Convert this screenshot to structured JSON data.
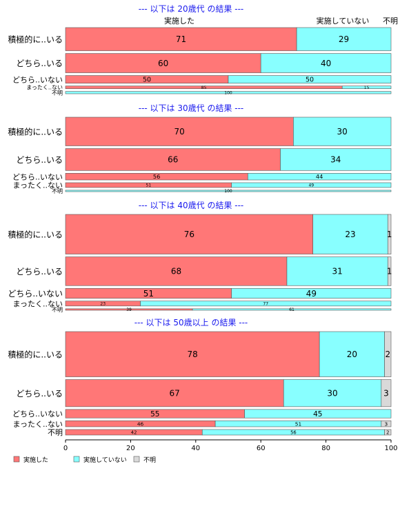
{
  "chart_data": {
    "type": "bar",
    "orientation": "horizontal",
    "stacked": true,
    "xlim": [
      0,
      100
    ],
    "x_ticks": [
      0,
      20,
      40,
      60,
      80,
      100
    ],
    "column_headers": [
      "実施した",
      "実施していない",
      "不明"
    ],
    "legend": {
      "position": "bottom-left",
      "entries": [
        "実施した",
        "実施していない",
        "不明"
      ]
    },
    "colors": {
      "実施した": "#ff7777",
      "実施していない": "#88ffff",
      "不明": "#d9d9d9"
    },
    "panels": [
      {
        "title": "--- 以下は 20歳代 の結果 ---",
        "rows": [
          {
            "label": "積極的に..いる",
            "values": [
              71,
              29,
              0
            ],
            "weight": 3
          },
          {
            "label": "どちら..いる",
            "values": [
              60,
              40,
              0
            ],
            "weight": 2.5
          },
          {
            "label": "どちら..いない",
            "values": [
              50,
              50,
              0
            ],
            "weight": 1
          },
          {
            "label": "まったく..ない",
            "values": [
              85,
              15,
              0
            ],
            "weight": 0.35
          },
          {
            "label": "不明",
            "values": [
              0,
              100,
              0
            ],
            "weight": 0.3
          }
        ]
      },
      {
        "title": "--- 以下は 30歳代 の結果 ---",
        "rows": [
          {
            "label": "積極的に..いる",
            "values": [
              70,
              30,
              0
            ],
            "weight": 3
          },
          {
            "label": "どちら..いる",
            "values": [
              66,
              34,
              0
            ],
            "weight": 2.3
          },
          {
            "label": "どちら..いない",
            "values": [
              56,
              44,
              0
            ],
            "weight": 0.7
          },
          {
            "label": "まったく..ない",
            "values": [
              51,
              49,
              0
            ],
            "weight": 0.5
          },
          {
            "label": "不明",
            "values": [
              0,
              100,
              0
            ],
            "weight": 0.15
          }
        ]
      },
      {
        "title": "--- 以下は 40歳代 の結果 ---",
        "rows": [
          {
            "label": "積極的に..いる",
            "values": [
              76,
              23,
              1
            ],
            "weight": 4
          },
          {
            "label": "どちら..いる",
            "values": [
              68,
              31,
              1
            ],
            "weight": 2.9
          },
          {
            "label": "どちら..いない",
            "values": [
              51,
              49,
              0
            ],
            "weight": 1
          },
          {
            "label": "まったく..ない",
            "values": [
              23,
              77,
              0
            ],
            "weight": 0.5
          },
          {
            "label": "不明",
            "values": [
              39,
              61,
              0
            ],
            "weight": 0.15
          }
        ]
      },
      {
        "title": "--- 以下は 50歳以上 の結果 ---",
        "rows": [
          {
            "label": "積極的に..いる",
            "values": [
              78,
              20,
              2
            ],
            "weight": 4.5
          },
          {
            "label": "どちら..いる",
            "values": [
              67,
              30,
              3
            ],
            "weight": 2.7
          },
          {
            "label": "どちら..いない",
            "values": [
              55,
              45,
              0
            ],
            "weight": 0.85
          },
          {
            "label": "まったく..ない",
            "values": [
              46,
              51,
              3
            ],
            "weight": 0.6
          },
          {
            "label": "不明",
            "values": [
              42,
              56,
              2
            ],
            "weight": 0.55
          }
        ]
      }
    ]
  }
}
